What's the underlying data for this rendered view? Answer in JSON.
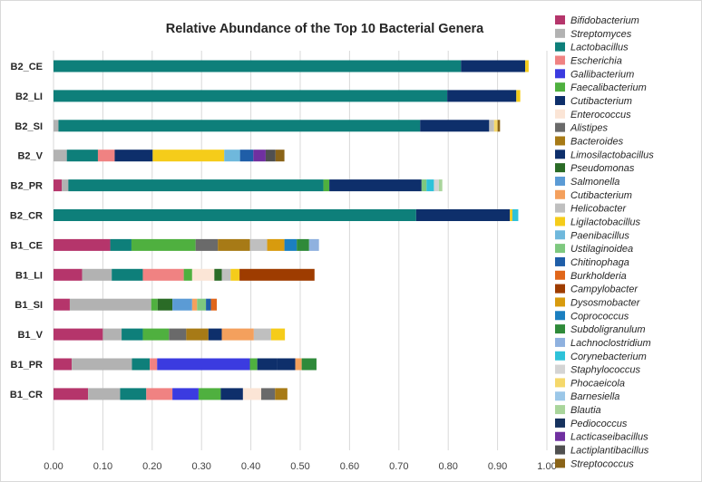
{
  "chart_data": {
    "type": "bar",
    "orientation": "horizontal",
    "stacked": true,
    "title": "Relative Abundance of the Top 10 Bacterial Genera",
    "xlabel": "",
    "ylabel": "",
    "xlim": [
      0,
      1
    ],
    "xticks": [
      "0.00",
      "0.10",
      "0.20",
      "0.30",
      "0.40",
      "0.50",
      "0.60",
      "0.70",
      "0.80",
      "0.90",
      "1.00"
    ],
    "grid": true,
    "legend_position": "right",
    "categories": [
      "B2_CE",
      "B2_LI",
      "B2_SI",
      "B2_V",
      "B2_PR",
      "B2_CR",
      "B1_CE",
      "B1_LI",
      "B1_SI",
      "B1_V",
      "B1_PR",
      "B1_CR"
    ],
    "series": [
      {
        "name": "Bifidobacterium",
        "color": "#b5356b",
        "values": [
          0,
          0,
          0,
          0,
          0.017,
          0,
          0.115,
          0.058,
          0.033,
          0.1,
          0.037,
          0.07
        ]
      },
      {
        "name": "Streptomyces",
        "color": "#b2b2b2",
        "values": [
          0,
          0,
          0.01,
          0.027,
          0.013,
          0,
          0,
          0.06,
          0.165,
          0.038,
          0.122,
          0.065
        ]
      },
      {
        "name": "Lactobacillus",
        "color": "#0e7f7a",
        "values": [
          0.826,
          0.798,
          0.733,
          0.063,
          0.517,
          0.735,
          0.043,
          0.063,
          0,
          0.043,
          0.036,
          0.053
        ]
      },
      {
        "name": "Escherichia",
        "color": "#f08282",
        "values": [
          0,
          0,
          0,
          0.034,
          0,
          0,
          0,
          0.083,
          0,
          0,
          0.015,
          0.053
        ]
      },
      {
        "name": "Gallibacterium",
        "color": "#3b3be0",
        "values": [
          0,
          0,
          0,
          0,
          0,
          0,
          0,
          0,
          0,
          0,
          0.188,
          0.053
        ]
      },
      {
        "name": "Faecalibacterium",
        "color": "#4fb03f",
        "values": [
          0,
          0,
          0,
          0,
          0.012,
          0,
          0.13,
          0.017,
          0.013,
          0.053,
          0.015,
          0.045
        ]
      },
      {
        "name": "Cutibacterium",
        "color": "#0e2f6b",
        "values": [
          0.13,
          0.14,
          0.14,
          0.077,
          0.187,
          0.19,
          0,
          0,
          0,
          0,
          0.04,
          0.045
        ]
      },
      {
        "name": "Enterococcus",
        "color": "#fbe5d6",
        "values": [
          0,
          0,
          0,
          0,
          0,
          0,
          0,
          0.045,
          0,
          0,
          0,
          0.037
        ]
      },
      {
        "name": "Alistipes",
        "color": "#6a6a6a",
        "values": [
          0,
          0,
          0,
          0,
          0,
          0,
          0.045,
          0,
          0,
          0.035,
          0,
          0.028
        ]
      },
      {
        "name": "Bacteroides",
        "color": "#a77a16",
        "values": [
          0,
          0,
          0,
          0,
          0,
          0,
          0.065,
          0,
          0,
          0.045,
          0,
          0.025
        ]
      },
      {
        "name": "Limosilactobacillus",
        "color": "#0e2f6b",
        "values": [
          0,
          0,
          0,
          0,
          0,
          0,
          0,
          0,
          0,
          0.027,
          0.037,
          0
        ]
      },
      {
        "name": "Pseudomonas",
        "color": "#2a6b26",
        "values": [
          0,
          0,
          0,
          0,
          0,
          0,
          0,
          0.015,
          0.03,
          0,
          0,
          0
        ]
      },
      {
        "name": "Salmonella",
        "color": "#5b9bd5",
        "values": [
          0,
          0,
          0,
          0,
          0,
          0,
          0,
          0,
          0.04,
          0,
          0,
          0
        ]
      },
      {
        "name": "Cutibacterium",
        "color": "#f4a05d",
        "values": [
          0,
          0,
          0,
          0,
          0,
          0,
          0,
          0,
          0.01,
          0.065,
          0.013,
          0
        ]
      },
      {
        "name": "Helicobacter",
        "color": "#bfbfbf",
        "values": [
          0,
          0,
          0.01,
          0,
          0,
          0,
          0.035,
          0.018,
          0,
          0.035,
          0,
          0
        ]
      },
      {
        "name": "Ligilactobacillus",
        "color": "#f5cc1a",
        "values": [
          0.007,
          0.008,
          0,
          0.145,
          0,
          0.005,
          0,
          0.018,
          0,
          0.028,
          0,
          0
        ]
      },
      {
        "name": "Paenibacillus",
        "color": "#6fb8dc",
        "values": [
          0,
          0,
          0,
          0.032,
          0,
          0,
          0,
          0,
          0,
          0,
          0,
          0
        ]
      },
      {
        "name": "Ustilaginoidea",
        "color": "#7ec87f",
        "values": [
          0,
          0,
          0,
          0,
          0.01,
          0,
          0,
          0,
          0.018,
          0,
          0,
          0
        ]
      },
      {
        "name": "Chitinophaga",
        "color": "#1f5ea8",
        "values": [
          0,
          0,
          0,
          0.027,
          0,
          0,
          0,
          0,
          0.01,
          0,
          0,
          0
        ]
      },
      {
        "name": "Burkholderia",
        "color": "#e0661a",
        "values": [
          0,
          0,
          0,
          0,
          0,
          0,
          0,
          0,
          0.012,
          0,
          0,
          0
        ]
      },
      {
        "name": "Campylobacter",
        "color": "#9e3c00",
        "values": [
          0,
          0,
          0,
          0,
          0,
          0,
          0,
          0.152,
          0,
          0,
          0,
          0
        ]
      },
      {
        "name": "Dysosmobacter",
        "color": "#d89b0e",
        "values": [
          0,
          0,
          0,
          0,
          0,
          0,
          0.035,
          0,
          0,
          0,
          0,
          0
        ]
      },
      {
        "name": "Coprococcus",
        "color": "#1b7fc0",
        "values": [
          0,
          0,
          0,
          0,
          0,
          0,
          0.025,
          0,
          0,
          0,
          0,
          0
        ]
      },
      {
        "name": "Subdoligranulum",
        "color": "#2f8a3a",
        "values": [
          0,
          0,
          0,
          0,
          0,
          0,
          0.025,
          0,
          0,
          0,
          0.03,
          0
        ]
      },
      {
        "name": "Lachnoclostridium",
        "color": "#8fb1df",
        "values": [
          0,
          0,
          0,
          0,
          0,
          0,
          0.02,
          0,
          0,
          0,
          0,
          0
        ]
      },
      {
        "name": "Corynebacterium",
        "color": "#2ec2d9",
        "values": [
          0,
          0,
          0,
          0,
          0.015,
          0.012,
          0,
          0,
          0,
          0,
          0,
          0
        ]
      },
      {
        "name": "Staphylococcus",
        "color": "#d4d4d4",
        "values": [
          0,
          0,
          0,
          0,
          0.01,
          0,
          0,
          0,
          0,
          0,
          0,
          0
        ]
      },
      {
        "name": "Phocaeicola",
        "color": "#f5d86b",
        "values": [
          0,
          0,
          0.007,
          0,
          0,
          0,
          0,
          0,
          0,
          0,
          0,
          0
        ]
      },
      {
        "name": "Barnesiella",
        "color": "#9bc7e8",
        "values": [
          0,
          0,
          0,
          0,
          0,
          0,
          0,
          0,
          0,
          0,
          0,
          0
        ]
      },
      {
        "name": "Blautia",
        "color": "#a9d59b",
        "values": [
          0,
          0,
          0,
          0,
          0.007,
          0,
          0,
          0,
          0,
          0,
          0,
          0
        ]
      },
      {
        "name": "Pediococcus",
        "color": "#16325e",
        "values": [
          0,
          0,
          0,
          0,
          0,
          0,
          0,
          0,
          0,
          0,
          0,
          0
        ]
      },
      {
        "name": "Lacticaseibacillus",
        "color": "#7030a0",
        "values": [
          0,
          0,
          0,
          0.025,
          0,
          0,
          0,
          0,
          0,
          0,
          0,
          0
        ]
      },
      {
        "name": "Lactiplantibacillus",
        "color": "#505050",
        "values": [
          0,
          0,
          0,
          0.02,
          0,
          0,
          0,
          0,
          0,
          0,
          0,
          0
        ]
      },
      {
        "name": "Streptococcus",
        "color": "#8a6418",
        "values": [
          0,
          0,
          0.005,
          0.018,
          0,
          0,
          0,
          0,
          0,
          0,
          0,
          0
        ]
      }
    ]
  }
}
